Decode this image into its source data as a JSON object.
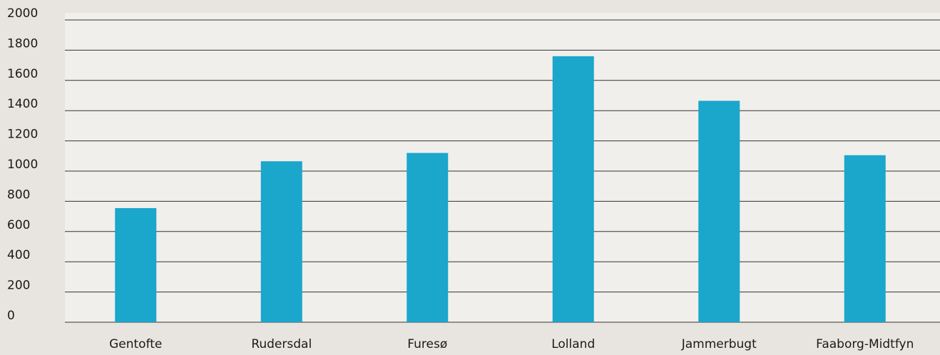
{
  "chart_data": {
    "type": "bar",
    "categories": [
      "Gentofte",
      "Rudersdal",
      "Furesø",
      "Lolland",
      "Jammerbugt",
      "Faaborg-Midtfyn"
    ],
    "series": [
      {
        "values": [
          755,
          1065,
          1120,
          1760,
          1465,
          1105
        ]
      }
    ],
    "title": "",
    "xlabel": "",
    "ylabel": "",
    "ylim": [
      0,
      2000
    ],
    "yticks": [
      "0",
      "200",
      "400",
      "600",
      "800",
      "1000",
      "1200",
      "1400",
      "1600",
      "1800",
      "2000"
    ],
    "grid": true,
    "colors": {
      "background": "#e8e5e0",
      "plot_background": "#f0efeb",
      "bar": "#1ba6cc",
      "grid": "#333333",
      "text": "#1a1a1a"
    }
  }
}
